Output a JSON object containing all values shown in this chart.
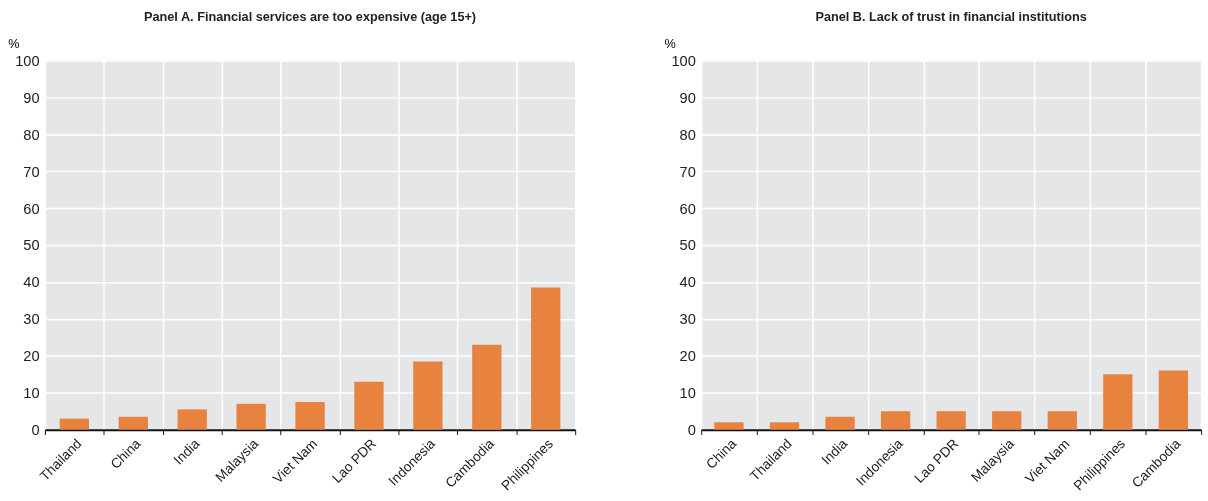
{
  "chart_data": [
    {
      "type": "bar",
      "title": "Panel A. Financial services are too expensive (age 15+)",
      "ylabel": "%",
      "categories": [
        "Thailand",
        "China",
        "India",
        "Malaysia",
        "Viet Nam",
        "Lao PDR",
        "Indonesia",
        "Cambodia",
        "Philippines"
      ],
      "values": [
        3,
        3.5,
        5.5,
        7,
        7.5,
        13,
        18.5,
        23,
        38.5
      ],
      "color": "#e8833f",
      "ylim": [
        0,
        100
      ],
      "yticks": [
        0,
        10,
        20,
        30,
        40,
        50,
        60,
        70,
        80,
        90,
        100
      ],
      "grid": true
    },
    {
      "type": "bar",
      "title": "Panel B. Lack of trust in financial institutions",
      "ylabel": "%",
      "categories": [
        "China",
        "Thailand",
        "India",
        "Indonesia",
        "Lao PDR",
        "Malaysia",
        "Viet Nam",
        "Philippines",
        "Cambodia"
      ],
      "values": [
        2,
        2,
        3.5,
        5,
        5,
        5,
        5,
        15,
        16
      ],
      "color": "#e8833f",
      "ylim": [
        0,
        100
      ],
      "yticks": [
        0,
        10,
        20,
        30,
        40,
        50,
        60,
        70,
        80,
        90,
        100
      ],
      "grid": true
    }
  ]
}
